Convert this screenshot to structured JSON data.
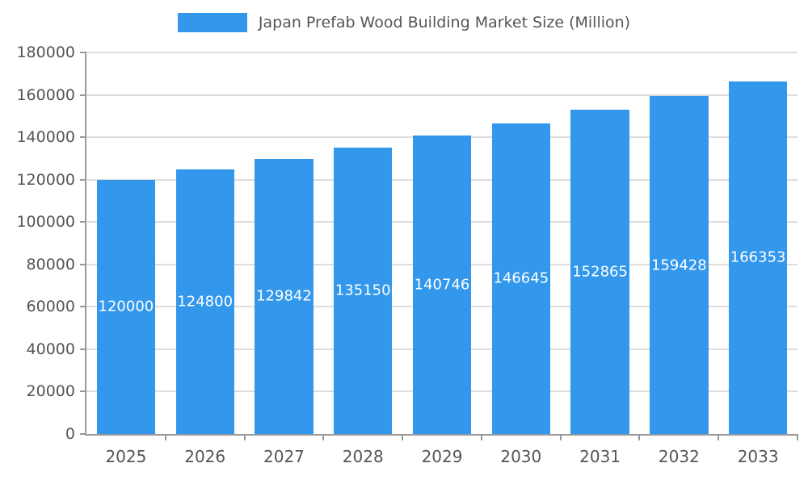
{
  "colors": {
    "bar": "#3398EC",
    "bar_label": "#ffffff",
    "axis": "#999999",
    "grid": "#dddddd",
    "text": "#555555"
  },
  "chart_data": {
    "type": "bar",
    "title": "Japan Prefab Wood Building Market Size (Million)",
    "categories": [
      "2025",
      "2026",
      "2027",
      "2028",
      "2029",
      "2030",
      "2031",
      "2032",
      "2033"
    ],
    "values": [
      120000,
      124800,
      129842,
      135150,
      140746,
      146645,
      152865,
      159428,
      166353
    ],
    "xlabel": "",
    "ylabel": "",
    "ylim": [
      0,
      180000
    ],
    "ytick_step": 20000,
    "yticks": [
      "0",
      "20000",
      "40000",
      "60000",
      "80000",
      "100000",
      "120000",
      "140000",
      "160000",
      "180000"
    ],
    "grid": true,
    "legend_position": "top",
    "value_labels_visible": true
  }
}
